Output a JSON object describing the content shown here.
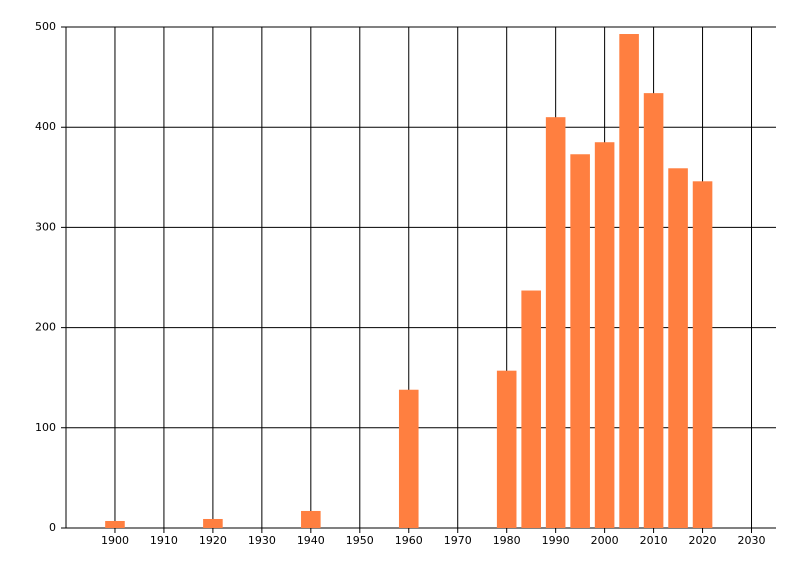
{
  "chart_data": {
    "type": "bar",
    "x": [
      1900,
      1920,
      1940,
      1960,
      1980,
      1985,
      1990,
      1995,
      2000,
      2005,
      2010,
      2015,
      2020
    ],
    "values": [
      7,
      9,
      17,
      138,
      157,
      237,
      410,
      373,
      385,
      493,
      434,
      359,
      346
    ],
    "color": "#ff7f40",
    "xlim": [
      1890,
      2035
    ],
    "xticks": [
      1900,
      1910,
      1920,
      1930,
      1940,
      1950,
      1960,
      1970,
      1980,
      1990,
      2000,
      2010,
      2020,
      2030
    ],
    "ylim": [
      0,
      500
    ],
    "yticks": [
      0,
      100,
      200,
      300,
      400,
      500
    ],
    "grid": true
  }
}
